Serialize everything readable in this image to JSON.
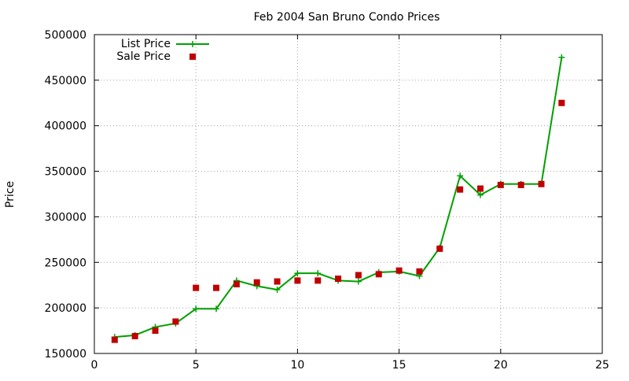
{
  "chart_data": {
    "type": "line",
    "title": "Feb 2004 San Bruno Condo Prices",
    "xlabel": "",
    "ylabel": "Price",
    "xlim": [
      0,
      25
    ],
    "ylim": [
      150000,
      500000
    ],
    "xticks": [
      0,
      5,
      10,
      15,
      20,
      25
    ],
    "yticks": [
      150000,
      200000,
      250000,
      300000,
      350000,
      400000,
      450000,
      500000
    ],
    "grid": true,
    "legend_position": "top-left",
    "series": [
      {
        "name": "List Price",
        "style": "linespoints",
        "marker": "plus",
        "color": "#00a000",
        "x": [
          1,
          2,
          3,
          4,
          5,
          6,
          7,
          8,
          9,
          10,
          11,
          12,
          13,
          14,
          15,
          16,
          17,
          18,
          19,
          20,
          21,
          22,
          23
        ],
        "values": [
          168000,
          170000,
          179000,
          183000,
          199000,
          199000,
          230000,
          224000,
          220000,
          238000,
          238000,
          230000,
          229000,
          239000,
          240000,
          235000,
          266000,
          345000,
          324000,
          336000,
          336000,
          336000,
          475000
        ]
      },
      {
        "name": "Sale Price",
        "style": "points",
        "marker": "square",
        "color": "#c00000",
        "x": [
          1,
          2,
          3,
          4,
          5,
          6,
          7,
          8,
          9,
          10,
          11,
          12,
          13,
          14,
          15,
          16,
          17,
          18,
          19,
          20,
          21,
          22,
          23
        ],
        "values": [
          165000,
          169000,
          175000,
          185000,
          222000,
          222000,
          226000,
          228000,
          229000,
          230000,
          230000,
          232000,
          236000,
          237000,
          241000,
          240000,
          265000,
          330000,
          331000,
          335000,
          335000,
          336000,
          425000
        ]
      }
    ]
  }
}
